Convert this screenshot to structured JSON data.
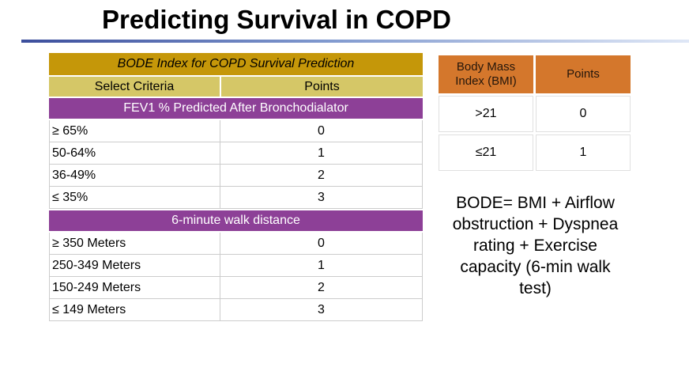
{
  "slide": {
    "title": "Predicting Survival in COPD"
  },
  "bode_table": {
    "title": "BODE Index for COPD Survival Prediction",
    "columns": {
      "criteria": "Select Criteria",
      "points": "Points"
    },
    "sections": [
      {
        "header": "FEV1 % Predicted After Bronchodialator",
        "rows": [
          {
            "criteria": "≥ 65%",
            "points": "0"
          },
          {
            "criteria": "50-64%",
            "points": "1"
          },
          {
            "criteria": "36-49%",
            "points": "2"
          },
          {
            "criteria": "≤ 35%",
            "points": "3"
          }
        ]
      },
      {
        "header": "6-minute walk distance",
        "rows": [
          {
            "criteria": "≥ 350 Meters",
            "points": "0"
          },
          {
            "criteria": "250-349 Meters",
            "points": "1"
          },
          {
            "criteria": "150-249 Meters",
            "points": "2"
          },
          {
            "criteria": "≤ 149 Meters",
            "points": "3"
          }
        ]
      }
    ]
  },
  "bmi_table": {
    "columns": {
      "bmi": "Body Mass Index (BMI)",
      "points": "Points"
    },
    "rows": [
      {
        "bmi": ">21",
        "points": "0"
      },
      {
        "bmi": "≤21",
        "points": "1"
      }
    ]
  },
  "bode_formula": "BODE= BMI + Airflow obstruction + Dyspnea rating + Exercise capacity (6-min walk test)",
  "colors": {
    "table_title_gold": "#C59709",
    "column_header_khaki": "#D5C767",
    "section_header_purple": "#8D4097",
    "bmi_header_orange": "#D4772C",
    "rule_blue_start": "#3C4E9C",
    "rule_blue_end": "#DFE7F6",
    "row_border_gray": "#CCCCCC"
  }
}
